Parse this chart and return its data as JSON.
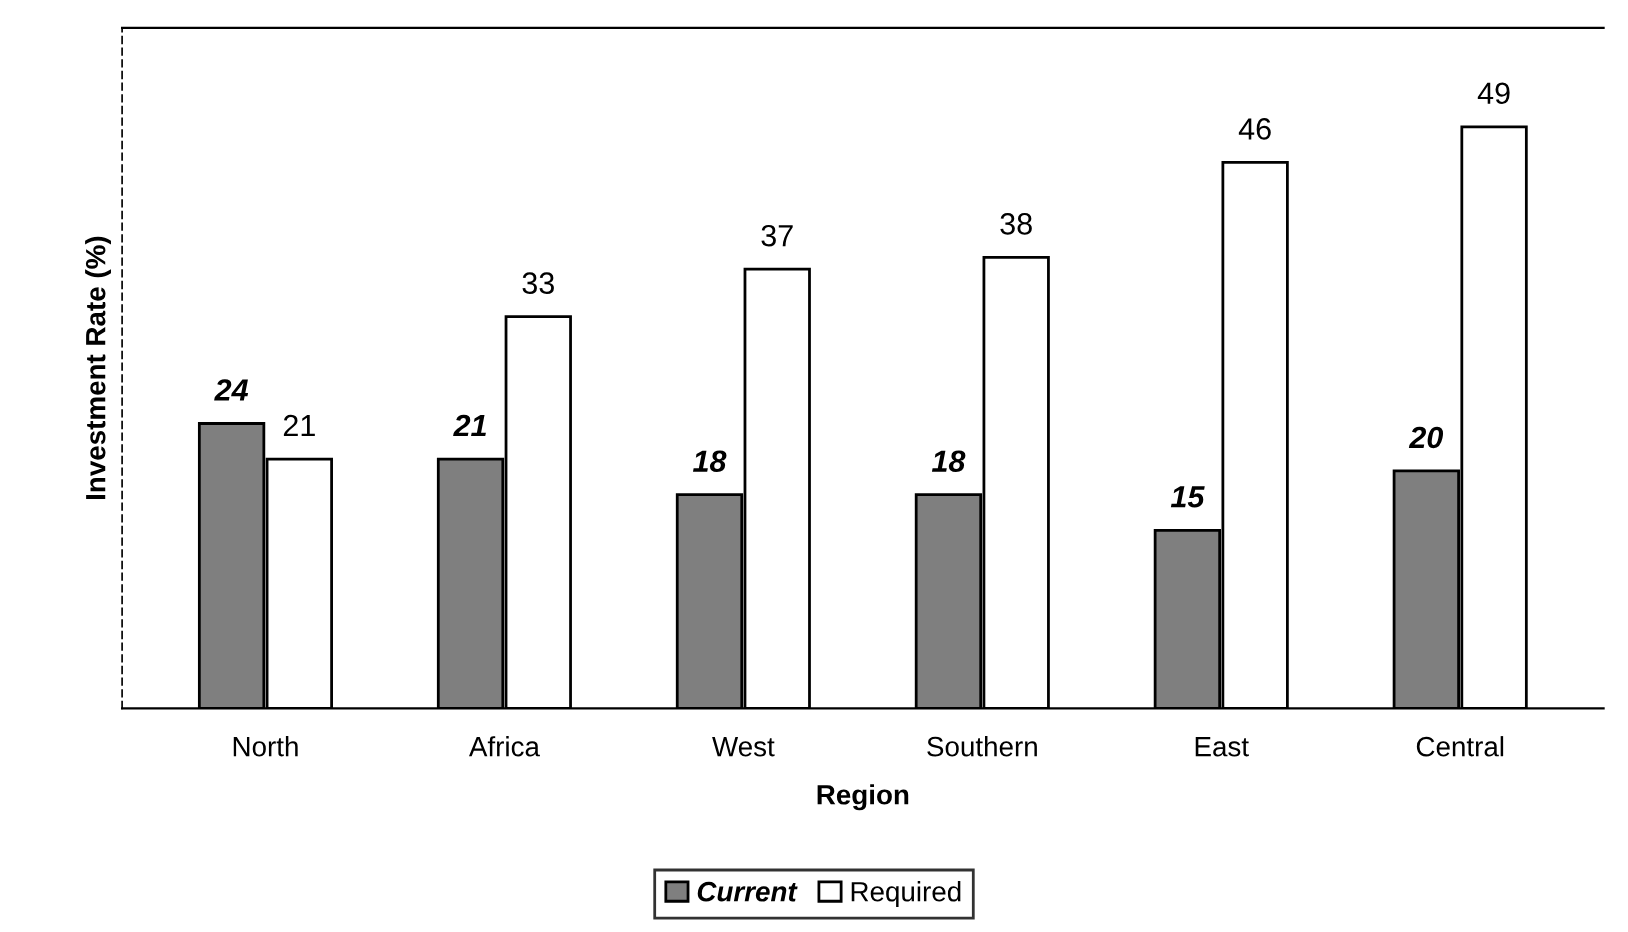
{
  "chart_data": {
    "type": "bar",
    "xlabel": "Region",
    "ylabel": "Investment Rate (%)",
    "categories": [
      "North",
      "Africa",
      "West",
      "Southern",
      "East",
      "Central"
    ],
    "series": [
      {
        "name": "Current",
        "color": "#7f7f7f",
        "values": [
          24,
          21,
          18,
          18,
          15,
          20
        ]
      },
      {
        "name": "Required",
        "color": "#ffffff",
        "values": [
          21,
          33,
          37,
          38,
          46,
          49
        ]
      }
    ],
    "data_labels": true,
    "legend": "bottom",
    "grid": false
  }
}
